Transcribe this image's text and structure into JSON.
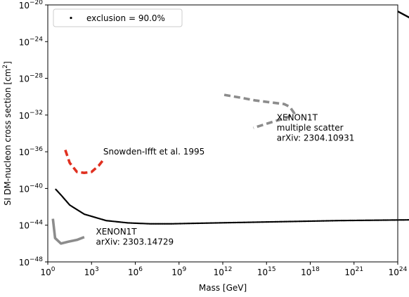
{
  "chart_data": {
    "type": "line",
    "xlabel": "Mass [GeV]",
    "ylabel": "SI DM-nucleon cross section [cm",
    "ylabel_sup": "2",
    "ylabel_close": "]",
    "x_scale": "log",
    "y_scale": "log",
    "xlim": [
      1,
      1e+24
    ],
    "ylim": [
      1e-48,
      1e-20
    ],
    "x_ticks": [
      {
        "value": 1,
        "base": "10",
        "exp": "0"
      },
      {
        "value": 1000.0,
        "base": "10",
        "exp": "3"
      },
      {
        "value": 1000000.0,
        "base": "10",
        "exp": "6"
      },
      {
        "value": 1000000000.0,
        "base": "10",
        "exp": "9"
      },
      {
        "value": 1000000000000.0,
        "base": "10",
        "exp": "12"
      },
      {
        "value": 1000000000000000.0,
        "base": "10",
        "exp": "15"
      },
      {
        "value": 1e+18,
        "base": "10",
        "exp": "18"
      },
      {
        "value": 1e+21,
        "base": "10",
        "exp": "21"
      },
      {
        "value": 1e+24,
        "base": "10",
        "exp": "24"
      }
    ],
    "y_ticks": [
      {
        "value": 1e-48,
        "base": "10",
        "exp": "−48"
      },
      {
        "value": 1e-44,
        "base": "10",
        "exp": "−44"
      },
      {
        "value": 1e-40,
        "base": "10",
        "exp": "−40"
      },
      {
        "value": 1e-36,
        "base": "10",
        "exp": "−36"
      },
      {
        "value": 1e-32,
        "base": "10",
        "exp": "−32"
      },
      {
        "value": 1e-28,
        "base": "10",
        "exp": "−28"
      },
      {
        "value": 1e-24,
        "base": "10",
        "exp": "−24"
      },
      {
        "value": 1e-20,
        "base": "10",
        "exp": "−20"
      }
    ],
    "grid": false,
    "legend": {
      "placement": "top-left",
      "entries": [
        {
          "label": "exclusion = 90.0%",
          "marker": "point",
          "color": "#000000"
        }
      ]
    },
    "series": [
      {
        "name": "exclusion = 90.0%",
        "style": "dotted-black",
        "color": "#000000",
        "x": [
          0.55,
          0.9,
          1.5,
          2.5,
          4,
          5.5,
          7,
          8.5,
          10,
          20,
          50
        ],
        "y": [
          -40.1,
          -40.7,
          -41.8,
          -42.8,
          -43.5,
          -43.75,
          -43.85,
          -43.85,
          -43.8,
          -43.5,
          -43.0
        ]
      },
      {
        "name": "",
        "style": "solid-black",
        "color": "#000000",
        "x": [
          50,
          24
        ],
        "y": [
          -43.0,
          -20.7
        ]
      },
      {
        "name": "XENON1T arXiv: 2303.14729",
        "style": "solid-gray",
        "color": "#8c8c8c",
        "x": [
          0.35,
          0.5,
          0.9,
          1.4,
          2.0,
          2.5
        ],
        "y": [
          -43.3,
          -45.4,
          -46.0,
          -45.8,
          -45.6,
          -45.3
        ]
      },
      {
        "name": "Snowden-Ifft et al. 1995",
        "style": "dashed-red",
        "color": "#e03020",
        "x": [
          1.2,
          1.5,
          2.0,
          2.5,
          3.0,
          3.5,
          3.8
        ],
        "y": [
          -35.8,
          -37.2,
          -38.2,
          -38.3,
          -38.2,
          -37.5,
          -36.9
        ]
      },
      {
        "name": "XENON1T multiple scatter arXiv: 2304.10931",
        "style": "dashed-gray",
        "color": "#8c8c8c",
        "x": [
          12.1,
          13.2,
          14.2,
          15.2,
          16.2,
          16.6,
          16.9,
          16.4,
          15.5,
          14.5,
          14.1
        ],
        "y": [
          -29.8,
          -30.1,
          -30.4,
          -30.6,
          -30.8,
          -31.1,
          -31.8,
          -32.3,
          -32.7,
          -33.2,
          -33.4
        ]
      }
    ],
    "annotations": [
      {
        "lines": [
          "Snowden-Ifft et al. 1995"
        ],
        "color": "#e03020",
        "anchor_x": 3.8,
        "anchor_y": -36.3
      },
      {
        "lines": [
          "XENON1T",
          "multiple scatter",
          "arXiv: 2304.10931"
        ],
        "color": "#8c8c8c",
        "anchor_x": 15.7,
        "anchor_y": -32.6
      },
      {
        "lines": [
          "XENON1T",
          "arXiv: 2303.14729"
        ],
        "color": "#8c8c8c",
        "anchor_x": 3.3,
        "anchor_y": -45.0
      }
    ]
  }
}
